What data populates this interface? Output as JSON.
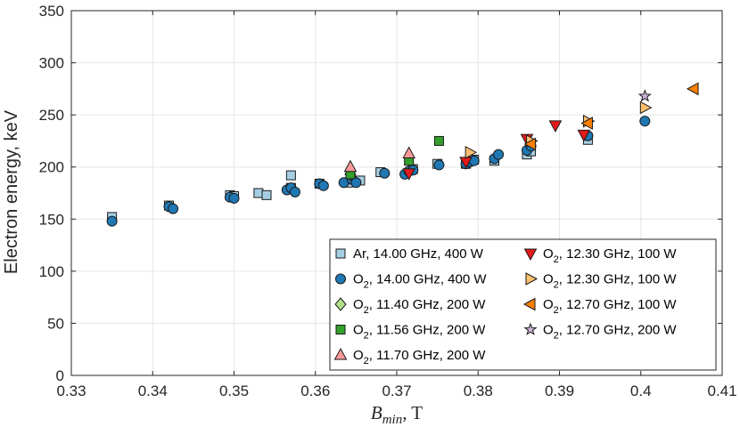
{
  "chart_data": {
    "type": "scatter",
    "title": "",
    "xlabel_main": "B",
    "xlabel_sub": "min",
    "xlabel_unit": ", T",
    "ylabel": "Electron energy, keV",
    "xlim": [
      0.33,
      0.41
    ],
    "ylim": [
      0,
      350
    ],
    "xticks": [
      0.33,
      0.34,
      0.35,
      0.36,
      0.37,
      0.38,
      0.39,
      0.4,
      0.41
    ],
    "xtick_labels": [
      "0.33",
      "0.34",
      "0.35",
      "0.36",
      "0.37",
      "0.38",
      "0.39",
      "0.4",
      "0.41"
    ],
    "yticks": [
      0,
      50,
      100,
      150,
      200,
      250,
      300,
      350
    ],
    "ytick_labels": [
      "0",
      "50",
      "100",
      "150",
      "200",
      "250",
      "300",
      "350"
    ],
    "grid": true,
    "legend_position": "bottom-right",
    "series": [
      {
        "species": "Ar",
        "subscript": "",
        "details": ", 14.00 GHz, 400 W",
        "marker": "square",
        "color": "#a6cee3",
        "x": [
          0.335,
          0.342,
          0.3495,
          0.35,
          0.353,
          0.354,
          0.357,
          0.357,
          0.3605,
          0.364,
          0.3655,
          0.368,
          0.372,
          0.375,
          0.3785,
          0.3795,
          0.382,
          0.386,
          0.3865,
          0.3935
        ],
        "y": [
          152,
          163,
          173,
          172,
          175,
          173,
          180,
          192,
          184,
          185,
          187,
          195,
          198,
          203,
          203,
          207,
          206,
          212,
          215,
          226
        ]
      },
      {
        "species": "O",
        "subscript": "2",
        "details": ", 14.00 GHz, 400 W",
        "marker": "circle",
        "color": "#1f78b4",
        "x": [
          0.335,
          0.342,
          0.3425,
          0.3495,
          0.35,
          0.3565,
          0.357,
          0.3575,
          0.3605,
          0.361,
          0.3635,
          0.3645,
          0.365,
          0.3685,
          0.371,
          0.3715,
          0.372,
          0.3752,
          0.3785,
          0.379,
          0.3795,
          0.382,
          0.3825,
          0.386,
          0.3865,
          0.3935,
          0.4005
        ],
        "y": [
          148,
          162,
          160,
          171,
          170,
          178,
          180,
          176,
          184,
          182,
          185,
          188,
          185,
          194,
          193,
          196,
          197,
          202,
          203,
          205,
          206,
          208,
          212,
          216,
          220,
          230,
          244
        ]
      },
      {
        "species": "O",
        "subscript": "2",
        "details": ", 11.40 GHz, 200 W",
        "marker": "diamond",
        "color": "#b2df8a",
        "x": [
          0.3643
        ],
        "y": [
          193
        ]
      },
      {
        "species": "O",
        "subscript": "2",
        "details": ", 11.56 GHz, 200 W",
        "marker": "square",
        "color": "#33a02c",
        "x": [
          0.3643,
          0.3715,
          0.3752
        ],
        "y": [
          193,
          206,
          225
        ]
      },
      {
        "species": "O",
        "subscript": "2",
        "details": ", 11.70 GHz, 200 W",
        "marker": "triangle-up",
        "color": "#fb9a99",
        "x": [
          0.3643,
          0.3715
        ],
        "y": [
          200,
          213
        ]
      },
      {
        "species": "O",
        "subscript": "2",
        "details": ", 12.30 GHz, 100 W",
        "marker": "triangle-down",
        "color": "#e31a1c",
        "x": [
          0.3715,
          0.3785,
          0.386,
          0.3895,
          0.393
        ],
        "y": [
          194,
          205,
          227,
          240,
          231
        ]
      },
      {
        "species": "O",
        "subscript": "2",
        "details": ", 12.30 GHz, 100 W",
        "marker": "triangle-right",
        "color": "#fdbf6f",
        "x": [
          0.379,
          0.3865,
          0.3935,
          0.4005
        ],
        "y": [
          214,
          225,
          244,
          257
        ]
      },
      {
        "species": "O",
        "subscript": "2",
        "details": ", 12.70 GHz, 100 W",
        "marker": "triangle-left",
        "color": "#ff7f00",
        "x": [
          0.3865,
          0.3935,
          0.4065
        ],
        "y": [
          222,
          242,
          275
        ]
      },
      {
        "species": "O",
        "subscript": "2",
        "details": ", 12.70 GHz, 200 W",
        "marker": "star",
        "color": "#cab2d6",
        "x": [
          0.4005
        ],
        "y": [
          268
        ]
      }
    ]
  }
}
